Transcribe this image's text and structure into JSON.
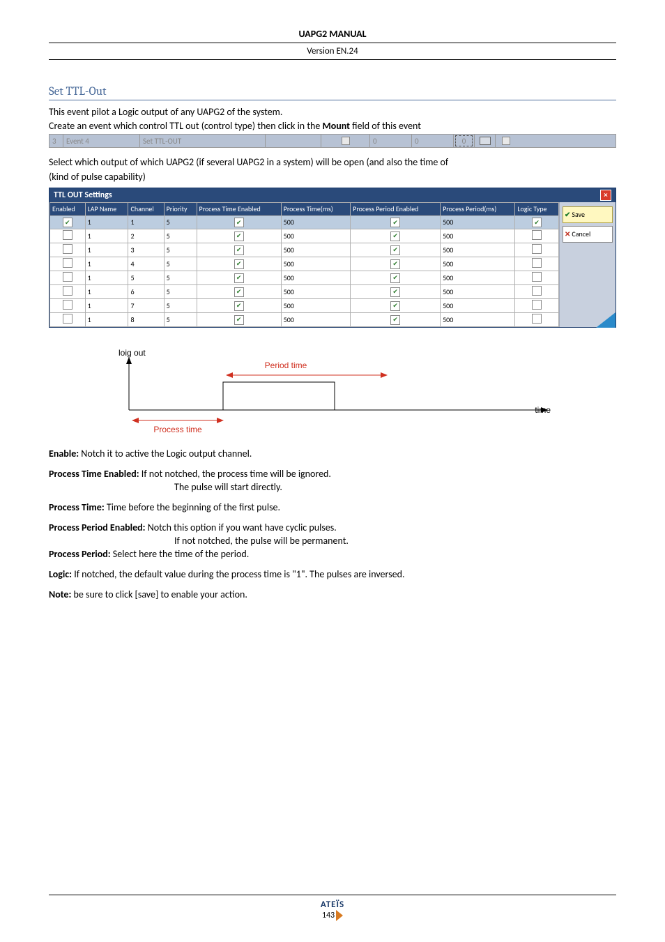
{
  "header": {
    "title": "UAPG2  MANUAL",
    "version": "Version EN.24"
  },
  "section": {
    "title": "Set TTL-Out",
    "intro1": "This event pilot a Logic output of any UAPG2 of the system.",
    "intro2a": "Create an event which control TTL out (control type) then click in the ",
    "intro2b": "Mount",
    "intro2c": " field of this event"
  },
  "event_row": {
    "index": "3",
    "name": "Event 4",
    "type": "Set TTL-OUT",
    "val1": "0",
    "val2": "0",
    "mount": "0"
  },
  "select_text_a": "Select which output of which UAPG2 (if several UAPG2 in a system) will be open (and also the time of",
  "select_text_b": "(kind of pulse capability)",
  "ttl_panel": {
    "title": "TTL OUT Settings",
    "columns": [
      "Enabled",
      "LAP Name",
      "Channel",
      "Priority",
      "Process Time Enabled",
      "Process Time(ms)",
      "Process Period Enabled",
      "Process Period(ms)",
      "Logic Type"
    ],
    "save": "Save",
    "cancel": "Cancel",
    "rows": [
      {
        "enabled": true,
        "lap": "1",
        "ch": "1",
        "prio": "5",
        "pte": true,
        "pt": "500",
        "ppe": true,
        "pp": "500",
        "lt": true,
        "sel": true
      },
      {
        "enabled": false,
        "lap": "1",
        "ch": "2",
        "prio": "5",
        "pte": true,
        "pt": "500",
        "ppe": true,
        "pp": "500",
        "lt": false,
        "sel": false
      },
      {
        "enabled": false,
        "lap": "1",
        "ch": "3",
        "prio": "5",
        "pte": true,
        "pt": "500",
        "ppe": true,
        "pp": "500",
        "lt": false,
        "sel": false
      },
      {
        "enabled": false,
        "lap": "1",
        "ch": "4",
        "prio": "5",
        "pte": true,
        "pt": "500",
        "ppe": true,
        "pp": "500",
        "lt": false,
        "sel": false
      },
      {
        "enabled": false,
        "lap": "1",
        "ch": "5",
        "prio": "5",
        "pte": true,
        "pt": "500",
        "ppe": true,
        "pp": "500",
        "lt": false,
        "sel": false
      },
      {
        "enabled": false,
        "lap": "1",
        "ch": "6",
        "prio": "5",
        "pte": true,
        "pt": "500",
        "ppe": true,
        "pp": "500",
        "lt": false,
        "sel": false
      },
      {
        "enabled": false,
        "lap": "1",
        "ch": "7",
        "prio": "5",
        "pte": true,
        "pt": "500",
        "ppe": true,
        "pp": "500",
        "lt": false,
        "sel": false
      },
      {
        "enabled": false,
        "lap": "1",
        "ch": "8",
        "prio": "5",
        "pte": true,
        "pt": "500",
        "ppe": true,
        "pp": "500",
        "lt": false,
        "sel": false
      }
    ]
  },
  "diagram": {
    "ylabel": "loig out",
    "xlabel": "time",
    "process_time": "Process time",
    "period_time": "Period time"
  },
  "defs": {
    "enable_label": "Enable:",
    "enable_text": " Notch it to active the Logic output channel.",
    "pte_label": "Process Time Enabled:",
    "pte_text1": "  If not notched, the process time will be ignored.",
    "pte_text2": "The pulse will start directly.",
    "pt_label": "Process Time:",
    "pt_text": "   Time before the beginning of the first pulse.",
    "ppe_label": "Process Period Enabled:",
    "ppe_text1": " Notch this option if you want have cyclic pulses.",
    "ppe_text2": "If not notched, the pulse will be permanent.",
    "pp_label": "Process Period:",
    "pp_text": " Select here the time of the period.",
    "logic_label": "Logic:",
    "logic_text": "   If notched, the default value during the process time is \"1\". The pulses are inversed.",
    "note_label": "Note:",
    "note_text": " be sure to click [save] to enable your action."
  },
  "footer": {
    "brand": "ATEÏS",
    "page": "143"
  }
}
